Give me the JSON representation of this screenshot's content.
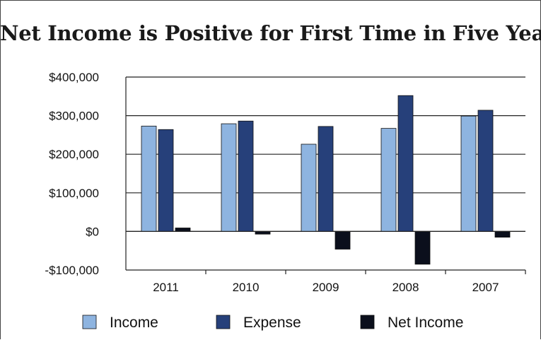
{
  "chart_data": {
    "type": "bar",
    "title": "Net Income is Positive for First Time in Five Years",
    "xlabel": "",
    "ylabel": "",
    "categories": [
      "2011",
      "2010",
      "2009",
      "2008",
      "2007"
    ],
    "series": [
      {
        "name": "Income",
        "values": [
          273000,
          279000,
          226000,
          267000,
          299000
        ],
        "color": "#8eb4e0"
      },
      {
        "name": "Expense",
        "values": [
          264000,
          286000,
          272000,
          352000,
          314000
        ],
        "color": "#26407a"
      },
      {
        "name": "Net Income",
        "values": [
          9000,
          -7000,
          -46000,
          -85000,
          -15000
        ],
        "color": "#0b0f1c"
      }
    ],
    "ylim": [
      -100000,
      400000
    ],
    "yticks": [
      400000,
      300000,
      200000,
      100000,
      0,
      -100000
    ],
    "ytick_labels": [
      "$400,000",
      "$300,000",
      "$200,000",
      "$100,000",
      "$0",
      "-$100,000"
    ],
    "grid": true,
    "legend": "bottom"
  }
}
